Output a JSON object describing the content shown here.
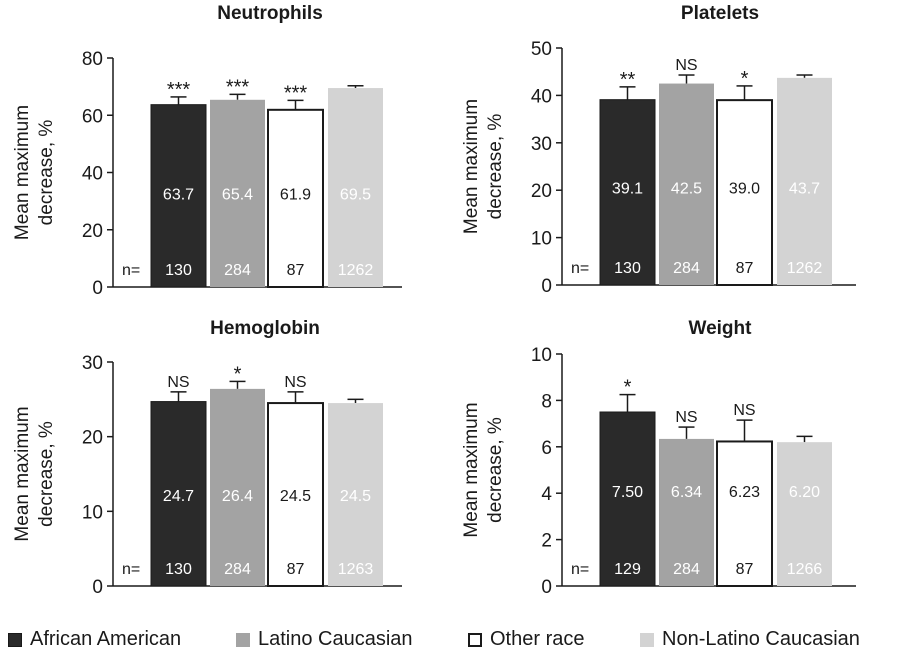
{
  "colors": {
    "African American": "#2a2a2a",
    "Latino Caucasian": "#a3a3a3",
    "Other race": "#ffffff",
    "Non-Latino Caucasian": "#d3d3d3"
  },
  "legend": [
    "African American",
    "Latino Caucasian",
    "Other race",
    "Non-Latino Caucasian"
  ],
  "n_prefix": "n=",
  "chart_data": [
    {
      "type": "bar",
      "title": "Neutrophils",
      "ylabel_lines": [
        "Mean maximum",
        "decrease, %"
      ],
      "ylim": [
        0,
        80
      ],
      "yticks": [
        0,
        20,
        40,
        60,
        80
      ],
      "categories": [
        "African American",
        "Latino Caucasian",
        "Other race",
        "Non-Latino Caucasian"
      ],
      "values": [
        63.7,
        65.4,
        61.9,
        69.5
      ],
      "value_labels": [
        "63.7",
        "65.4",
        "61.9",
        "69.5"
      ],
      "error_upper": [
        66.4,
        67.3,
        65.2,
        70.3
      ],
      "significance": [
        "***",
        "***",
        "***",
        ""
      ],
      "n": [
        "130",
        "284",
        "87",
        "1262"
      ]
    },
    {
      "type": "bar",
      "title": "Platelets",
      "ylabel_lines": [
        "Mean maximum",
        "decrease, %"
      ],
      "ylim": [
        0,
        50
      ],
      "yticks": [
        0,
        10,
        20,
        30,
        40,
        50
      ],
      "categories": [
        "African American",
        "Latino Caucasian",
        "Other race",
        "Non-Latino Caucasian"
      ],
      "values": [
        39.1,
        42.5,
        39.0,
        43.7
      ],
      "value_labels": [
        "39.1",
        "42.5",
        "39.0",
        "43.7"
      ],
      "error_upper": [
        41.8,
        44.3,
        42.0,
        44.3
      ],
      "significance": [
        "**",
        "NS",
        "*",
        ""
      ],
      "n": [
        "130",
        "284",
        "87",
        "1262"
      ]
    },
    {
      "type": "bar",
      "title": "Hemoglobin",
      "ylabel_lines": [
        "Mean maximum",
        "decrease, %"
      ],
      "ylim": [
        0,
        30
      ],
      "yticks": [
        0,
        10,
        20,
        30
      ],
      "categories": [
        "African American",
        "Latino Caucasian",
        "Other race",
        "Non-Latino Caucasian"
      ],
      "values": [
        24.7,
        26.4,
        24.5,
        24.5
      ],
      "value_labels": [
        "24.7",
        "26.4",
        "24.5",
        "24.5"
      ],
      "error_upper": [
        26.0,
        27.4,
        26.0,
        25.0
      ],
      "significance": [
        "NS",
        "*",
        "NS",
        ""
      ],
      "n": [
        "130",
        "284",
        "87",
        "1263"
      ]
    },
    {
      "type": "bar",
      "title": "Weight",
      "ylabel_lines": [
        "Mean maximum",
        "decrease, %"
      ],
      "ylim": [
        0,
        10
      ],
      "yticks": [
        0,
        2,
        4,
        6,
        8,
        10
      ],
      "categories": [
        "African American",
        "Latino Caucasian",
        "Other race",
        "Non-Latino Caucasian"
      ],
      "values": [
        7.5,
        6.34,
        6.23,
        6.2
      ],
      "value_labels": [
        "7.50",
        "6.34",
        "6.23",
        "6.20"
      ],
      "error_upper": [
        8.25,
        6.85,
        7.15,
        6.45
      ],
      "significance": [
        "*",
        "NS",
        "NS",
        ""
      ],
      "n": [
        "129",
        "284",
        "87",
        "1266"
      ]
    }
  ]
}
